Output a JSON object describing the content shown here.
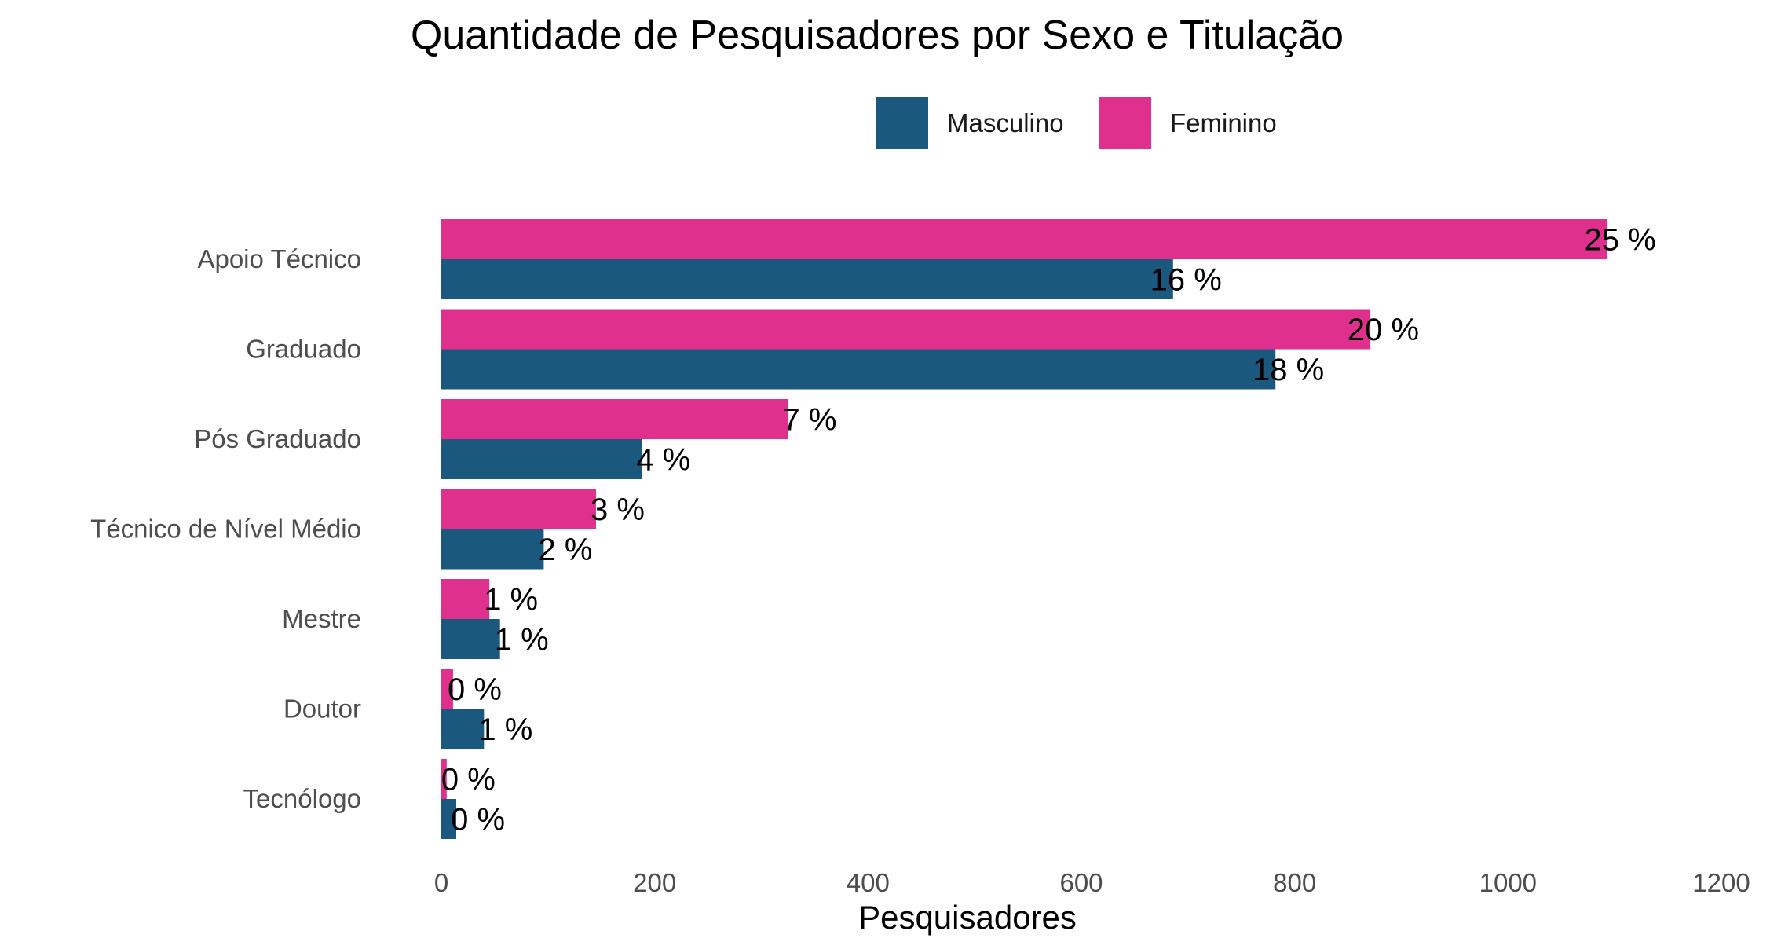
{
  "chart_data": {
    "type": "bar",
    "orientation": "horizontal",
    "title": "Quantidade de Pesquisadores por Sexo e Titulação",
    "xlabel": "Pesquisadores",
    "ylabel": "",
    "xlim": [
      0,
      1200
    ],
    "x_ticks": [
      "0",
      "200",
      "400",
      "600",
      "800",
      "1000",
      "1200"
    ],
    "x_tick_values": [
      0,
      200,
      400,
      600,
      800,
      1000,
      1200
    ],
    "categories": [
      "Apoio Técnico",
      "Graduado",
      "Pós Graduado",
      "Técnico de Nível Médio",
      "Mestre",
      "Doutor",
      "Tecnólogo"
    ],
    "series": [
      {
        "name": "Feminino",
        "color": "#e0308e",
        "values": [
          1093,
          871,
          325,
          145,
          45,
          11,
          5
        ],
        "labels": [
          "25 %",
          "20 %",
          "7 %",
          "3 %",
          "1 %",
          "0 %",
          "0 %"
        ]
      },
      {
        "name": "Masculino",
        "color": "#1a587e",
        "values": [
          686,
          782,
          188,
          96,
          55,
          40,
          14
        ],
        "labels": [
          "16 %",
          "18 %",
          "4 %",
          "2 %",
          "1 %",
          "1 %",
          "0 %"
        ]
      }
    ],
    "legend": {
      "position": "top",
      "entries": [
        {
          "name": "Masculino",
          "color": "#1a587e"
        },
        {
          "name": "Feminino",
          "color": "#e0308e"
        }
      ]
    },
    "grid": false
  }
}
